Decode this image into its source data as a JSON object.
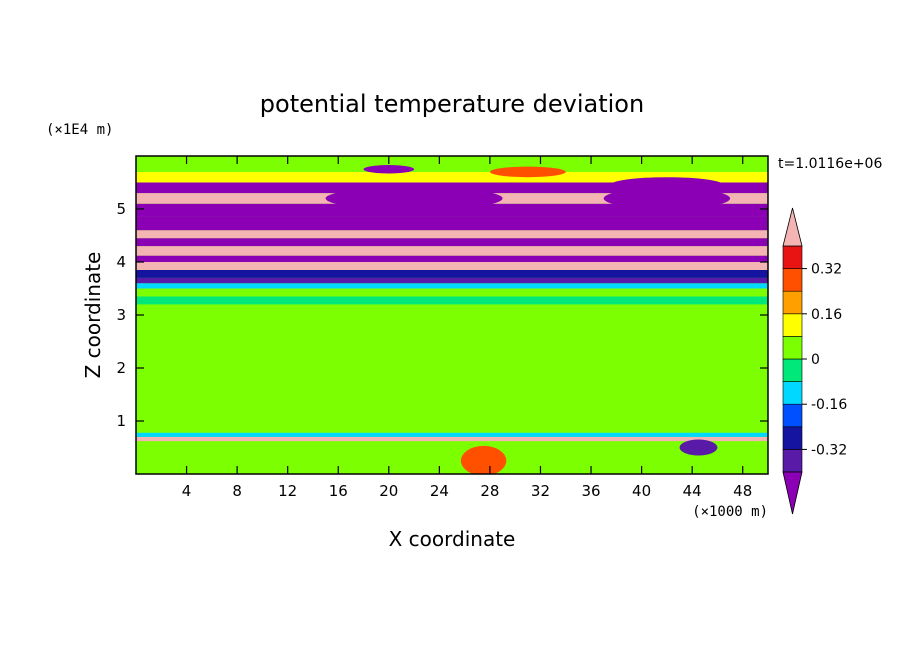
{
  "chart_data": {
    "type": "heatmap",
    "title": "potential temperature deviation",
    "xlabel": "X coordinate",
    "ylabel": "Z coordinate",
    "x_unit": "(×1000 m)",
    "y_unit": "(×1E4 m)",
    "time_label": "t=1.0116e+06",
    "xlim": [
      0,
      50
    ],
    "ylim": [
      0,
      6
    ],
    "x_ticks": [
      4,
      8,
      12,
      16,
      20,
      24,
      28,
      32,
      36,
      40,
      44,
      48
    ],
    "y_ticks": [
      1,
      2,
      3,
      4,
      5
    ],
    "colorbar": {
      "levels": [
        -0.4,
        -0.32,
        -0.24,
        -0.16,
        -0.08,
        0,
        0.08,
        0.16,
        0.24,
        0.32,
        0.4
      ],
      "tick_labels": [
        "0.32",
        "0.16",
        "0",
        "-0.16",
        "-0.32"
      ],
      "tick_values": [
        0.32,
        0.16,
        0,
        -0.16,
        -0.32
      ],
      "colors": [
        "#8b00b4",
        "#5a1aa8",
        "#1414a0",
        "#0050ff",
        "#00d8ff",
        "#00e87a",
        "#7cff00",
        "#ffff00",
        "#ffa000",
        "#ff5000",
        "#e81414",
        "#f4b4b4"
      ],
      "extend": "both"
    },
    "bands": [
      {
        "z": [
          0.0,
          0.55
        ],
        "value": 0.0
      },
      {
        "z": [
          0.55,
          0.62
        ],
        "value": 0.04
      },
      {
        "z": [
          0.62,
          0.7
        ],
        "value": 0.44
      },
      {
        "z": [
          0.7,
          0.78
        ],
        "value": -0.12
      },
      {
        "z": [
          0.78,
          1.0
        ],
        "value": 0.0
      },
      {
        "z": [
          1.0,
          3.2
        ],
        "value": 0.04
      },
      {
        "z": [
          3.2,
          3.35
        ],
        "value": -0.06
      },
      {
        "z": [
          3.35,
          3.5
        ],
        "value": 0.02
      },
      {
        "z": [
          3.5,
          3.6
        ],
        "value": -0.1
      },
      {
        "z": [
          3.6,
          3.7
        ],
        "value": -0.36
      },
      {
        "z": [
          3.7,
          3.85
        ],
        "value": -0.28
      },
      {
        "z": [
          3.85,
          4.0
        ],
        "value": 0.44
      },
      {
        "z": [
          4.0,
          4.12
        ],
        "value": -0.44
      },
      {
        "z": [
          4.12,
          4.3
        ],
        "value": 0.44
      },
      {
        "z": [
          4.3,
          4.45
        ],
        "value": -0.44
      },
      {
        "z": [
          4.45,
          4.6
        ],
        "value": 0.44
      },
      {
        "z": [
          4.6,
          4.85
        ],
        "value": -0.44
      },
      {
        "z": [
          4.85,
          5.1
        ],
        "value": -0.44
      },
      {
        "z": [
          5.1,
          5.3
        ],
        "value": 0.44
      },
      {
        "z": [
          5.3,
          5.5
        ],
        "value": -0.44
      },
      {
        "z": [
          5.5,
          5.7
        ],
        "value": 0.1
      },
      {
        "z": [
          5.7,
          6.0
        ],
        "value": 0.0
      }
    ],
    "features": [
      {
        "type": "blob",
        "x": 27.5,
        "z": 0.25,
        "rx": 1.8,
        "rz": 0.28,
        "value": 0.3
      },
      {
        "type": "blob",
        "x": 44.5,
        "z": 0.5,
        "rx": 1.5,
        "rz": 0.15,
        "value": -0.36
      },
      {
        "type": "blob",
        "x": 22,
        "z": 5.2,
        "rx": 7,
        "rz": 0.22,
        "value": -0.44
      },
      {
        "type": "blob",
        "x": 42,
        "z": 5.2,
        "rx": 5,
        "rz": 0.2,
        "value": -0.44
      },
      {
        "type": "blob",
        "x": 42,
        "z": 5.45,
        "rx": 4.5,
        "rz": 0.15,
        "value": -0.44
      },
      {
        "type": "blob",
        "x": 20,
        "z": 5.75,
        "rx": 2,
        "rz": 0.08,
        "value": -0.44
      },
      {
        "type": "blob",
        "x": 31,
        "z": 5.7,
        "rx": 3,
        "rz": 0.1,
        "value": 0.3
      }
    ]
  }
}
